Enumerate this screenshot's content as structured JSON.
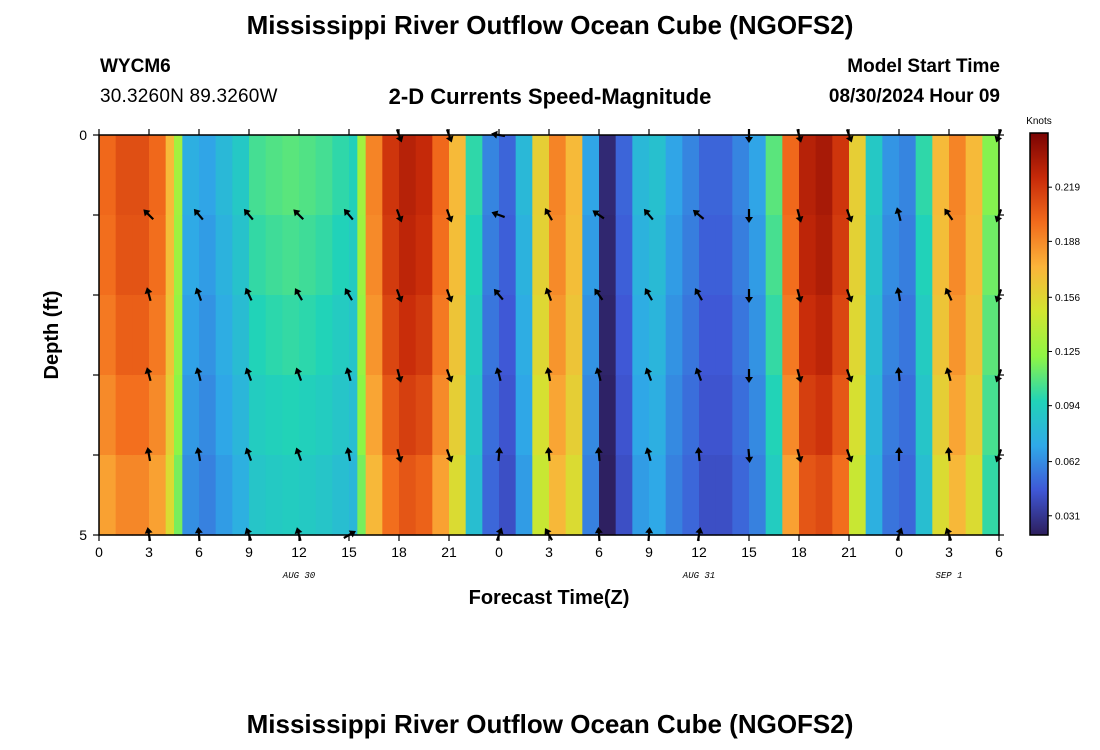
{
  "header": {
    "title": "Mississippi River Outflow Ocean Cube (NGOFS2)",
    "station": "WYCM6",
    "coordinates": "30.3260N  89.3260W",
    "subtitle": "2-D Currents Speed-Magnitude",
    "model_start_label": "Model Start Time",
    "model_start_value": "08/30/2024 Hour 09"
  },
  "footer": {
    "title": "Mississippi River Outflow Ocean Cube (NGOFS2)"
  },
  "colors": {
    "palette": [
      "#2d1e5c",
      "#3f57d6",
      "#2fa9e8",
      "#21d3b8",
      "#8ef545",
      "#d2e530",
      "#fbb43a",
      "#f26b1c",
      "#c72a09",
      "#7a0403"
    ],
    "arrow": "#000000",
    "frame": "#000000"
  },
  "chart_data": {
    "type": "heatmap",
    "title": "2-D Currents Speed-Magnitude",
    "xlabel": "Forecast Time(Z)",
    "ylabel": "Depth (ft)",
    "units": "Knots",
    "x_hours_from_start": [
      0,
      3,
      6,
      9,
      12,
      15,
      18,
      21,
      24,
      27,
      30,
      33,
      36,
      39,
      42,
      45,
      48,
      51,
      54
    ],
    "x_tick_labels": [
      "0",
      "3",
      "6",
      "9",
      "12",
      "15",
      "18",
      "21",
      "0",
      "3",
      "6",
      "9",
      "12",
      "15",
      "18",
      "21",
      "0",
      "3",
      "6"
    ],
    "day_labels": [
      {
        "label": "AUG 30",
        "hour": 12
      },
      {
        "label": "AUG 31",
        "hour": 36
      },
      {
        "label": "SEP 1",
        "hour": 51
      }
    ],
    "y_tick_labels": [
      "0",
      "5"
    ],
    "ylim": [
      0,
      5
    ],
    "depth_layers": 5,
    "colorbar_ticks": [
      "0.031",
      "0.062",
      "0.094",
      "0.125",
      "0.156",
      "0.188",
      "0.219"
    ],
    "colorbar_tick_values": [
      0.031,
      0.062,
      0.094,
      0.125,
      0.156,
      0.188,
      0.219
    ],
    "colorbar_range": [
      0.02,
      0.25
    ],
    "speed_columns": [
      {
        "hour": 0,
        "speed": 0.2
      },
      {
        "hour": 1,
        "speed": 0.21
      },
      {
        "hour": 2,
        "speed": 0.21
      },
      {
        "hour": 3,
        "speed": 0.2
      },
      {
        "hour": 4,
        "speed": 0.17
      },
      {
        "hour": 4.5,
        "speed": 0.13
      },
      {
        "hour": 5,
        "speed": 0.075
      },
      {
        "hour": 6,
        "speed": 0.07
      },
      {
        "hour": 7,
        "speed": 0.08
      },
      {
        "hour": 8,
        "speed": 0.09
      },
      {
        "hour": 9,
        "speed": 0.105
      },
      {
        "hour": 10,
        "speed": 0.108
      },
      {
        "hour": 11,
        "speed": 0.11
      },
      {
        "hour": 12,
        "speed": 0.108
      },
      {
        "hour": 13,
        "speed": 0.105
      },
      {
        "hour": 14,
        "speed": 0.1
      },
      {
        "hour": 15,
        "speed": 0.095
      },
      {
        "hour": 15.5,
        "speed": 0.13
      },
      {
        "hour": 16,
        "speed": 0.19
      },
      {
        "hour": 17,
        "speed": 0.22
      },
      {
        "hour": 18,
        "speed": 0.23
      },
      {
        "hour": 19,
        "speed": 0.225
      },
      {
        "hour": 20,
        "speed": 0.2
      },
      {
        "hour": 21,
        "speed": 0.17
      },
      {
        "hour": 22,
        "speed": 0.1
      },
      {
        "hour": 23,
        "speed": 0.06
      },
      {
        "hour": 24,
        "speed": 0.05
      },
      {
        "hour": 25,
        "speed": 0.08
      },
      {
        "hour": 26,
        "speed": 0.16
      },
      {
        "hour": 27,
        "speed": 0.19
      },
      {
        "hour": 28,
        "speed": 0.17
      },
      {
        "hour": 29,
        "speed": 0.07
      },
      {
        "hour": 30,
        "speed": 0.025
      },
      {
        "hour": 31,
        "speed": 0.05
      },
      {
        "hour": 32,
        "speed": 0.08
      },
      {
        "hour": 33,
        "speed": 0.085
      },
      {
        "hour": 34,
        "speed": 0.07
      },
      {
        "hour": 35,
        "speed": 0.06
      },
      {
        "hour": 36,
        "speed": 0.05
      },
      {
        "hour": 37,
        "speed": 0.05
      },
      {
        "hour": 38,
        "speed": 0.06
      },
      {
        "hour": 39,
        "speed": 0.07
      },
      {
        "hour": 40,
        "speed": 0.11
      },
      {
        "hour": 41,
        "speed": 0.2
      },
      {
        "hour": 42,
        "speed": 0.23
      },
      {
        "hour": 43,
        "speed": 0.235
      },
      {
        "hour": 44,
        "speed": 0.22
      },
      {
        "hour": 45,
        "speed": 0.16
      },
      {
        "hour": 46,
        "speed": 0.09
      },
      {
        "hour": 47,
        "speed": 0.065
      },
      {
        "hour": 48,
        "speed": 0.06
      },
      {
        "hour": 49,
        "speed": 0.1
      },
      {
        "hour": 50,
        "speed": 0.17
      },
      {
        "hour": 51,
        "speed": 0.19
      },
      {
        "hour": 52,
        "speed": 0.17
      },
      {
        "hour": 53,
        "speed": 0.12
      },
      {
        "hour": 54,
        "speed": 0.06
      }
    ],
    "arrows": [
      {
        "hour": 3,
        "directions_deg": [
          null,
          315,
          345,
          345,
          350,
          350
        ]
      },
      {
        "hour": 6,
        "directions_deg": [
          null,
          320,
          340,
          345,
          350,
          355
        ]
      },
      {
        "hour": 9,
        "directions_deg": [
          null,
          320,
          335,
          340,
          340,
          340
        ]
      },
      {
        "hour": 12,
        "directions_deg": [
          null,
          315,
          330,
          340,
          340,
          345
        ]
      },
      {
        "hour": 15,
        "directions_deg": [
          null,
          320,
          330,
          345,
          350,
          60
        ]
      },
      {
        "hour": 18,
        "directions_deg": [
          160,
          160,
          160,
          165,
          165,
          null
        ]
      },
      {
        "hour": 21,
        "directions_deg": [
          160,
          160,
          160,
          160,
          160,
          null
        ]
      },
      {
        "hour": 24,
        "directions_deg": [
          280,
          290,
          320,
          345,
          5,
          20
        ]
      },
      {
        "hour": 27,
        "directions_deg": [
          null,
          330,
          340,
          350,
          355,
          330
        ]
      },
      {
        "hour": 30,
        "directions_deg": [
          null,
          305,
          325,
          345,
          355,
          355
        ]
      },
      {
        "hour": 33,
        "directions_deg": [
          null,
          320,
          330,
          340,
          345,
          5
        ]
      },
      {
        "hour": 36,
        "directions_deg": [
          null,
          310,
          330,
          340,
          355,
          10
        ]
      },
      {
        "hour": 39,
        "directions_deg": [
          180,
          180,
          180,
          180,
          175,
          null
        ]
      },
      {
        "hour": 42,
        "directions_deg": [
          165,
          165,
          165,
          165,
          165,
          null
        ]
      },
      {
        "hour": 45,
        "directions_deg": [
          160,
          160,
          160,
          160,
          160,
          null
        ]
      },
      {
        "hour": 48,
        "directions_deg": [
          null,
          345,
          350,
          355,
          0,
          20
        ]
      },
      {
        "hour": 51,
        "directions_deg": [
          null,
          325,
          335,
          345,
          355,
          340
        ]
      },
      {
        "hour": 54,
        "directions_deg": [
          200,
          200,
          200,
          200,
          200,
          null
        ]
      }
    ]
  }
}
